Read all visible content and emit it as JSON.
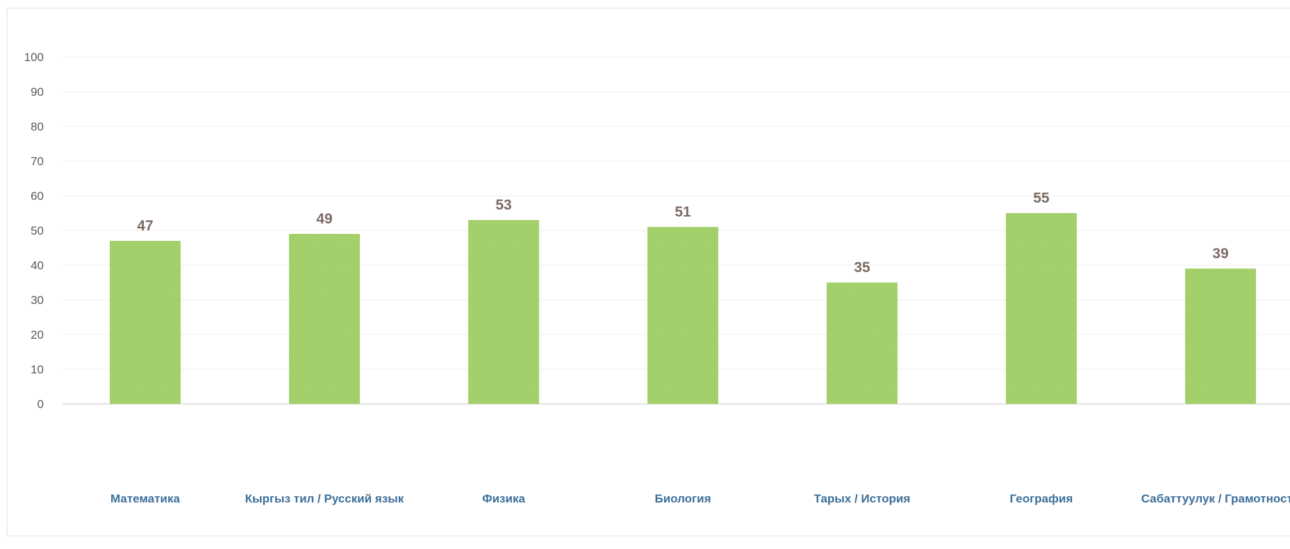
{
  "chart_data": {
    "type": "bar",
    "categories": [
      "Математика",
      "Кыргыз тил / Русский язык",
      "Физика",
      "Биология",
      "Тарых / История",
      "География",
      "Сабаттуулук / Грамотность"
    ],
    "values": [
      47,
      49,
      53,
      51,
      35,
      55,
      39
    ],
    "title": "",
    "xlabel": "",
    "ylabel": "",
    "ylim": [
      0,
      100
    ],
    "yticks": [
      0,
      10,
      20,
      30,
      40,
      50,
      60,
      70,
      80,
      90,
      100
    ],
    "grid": true,
    "legend": "none",
    "colors": {
      "bar": "#a8d46f",
      "bar_dot": "#92c05a",
      "data_label": "#7b6a63",
      "category_label": "#3c6f9a",
      "tick_label": "#595959"
    }
  }
}
